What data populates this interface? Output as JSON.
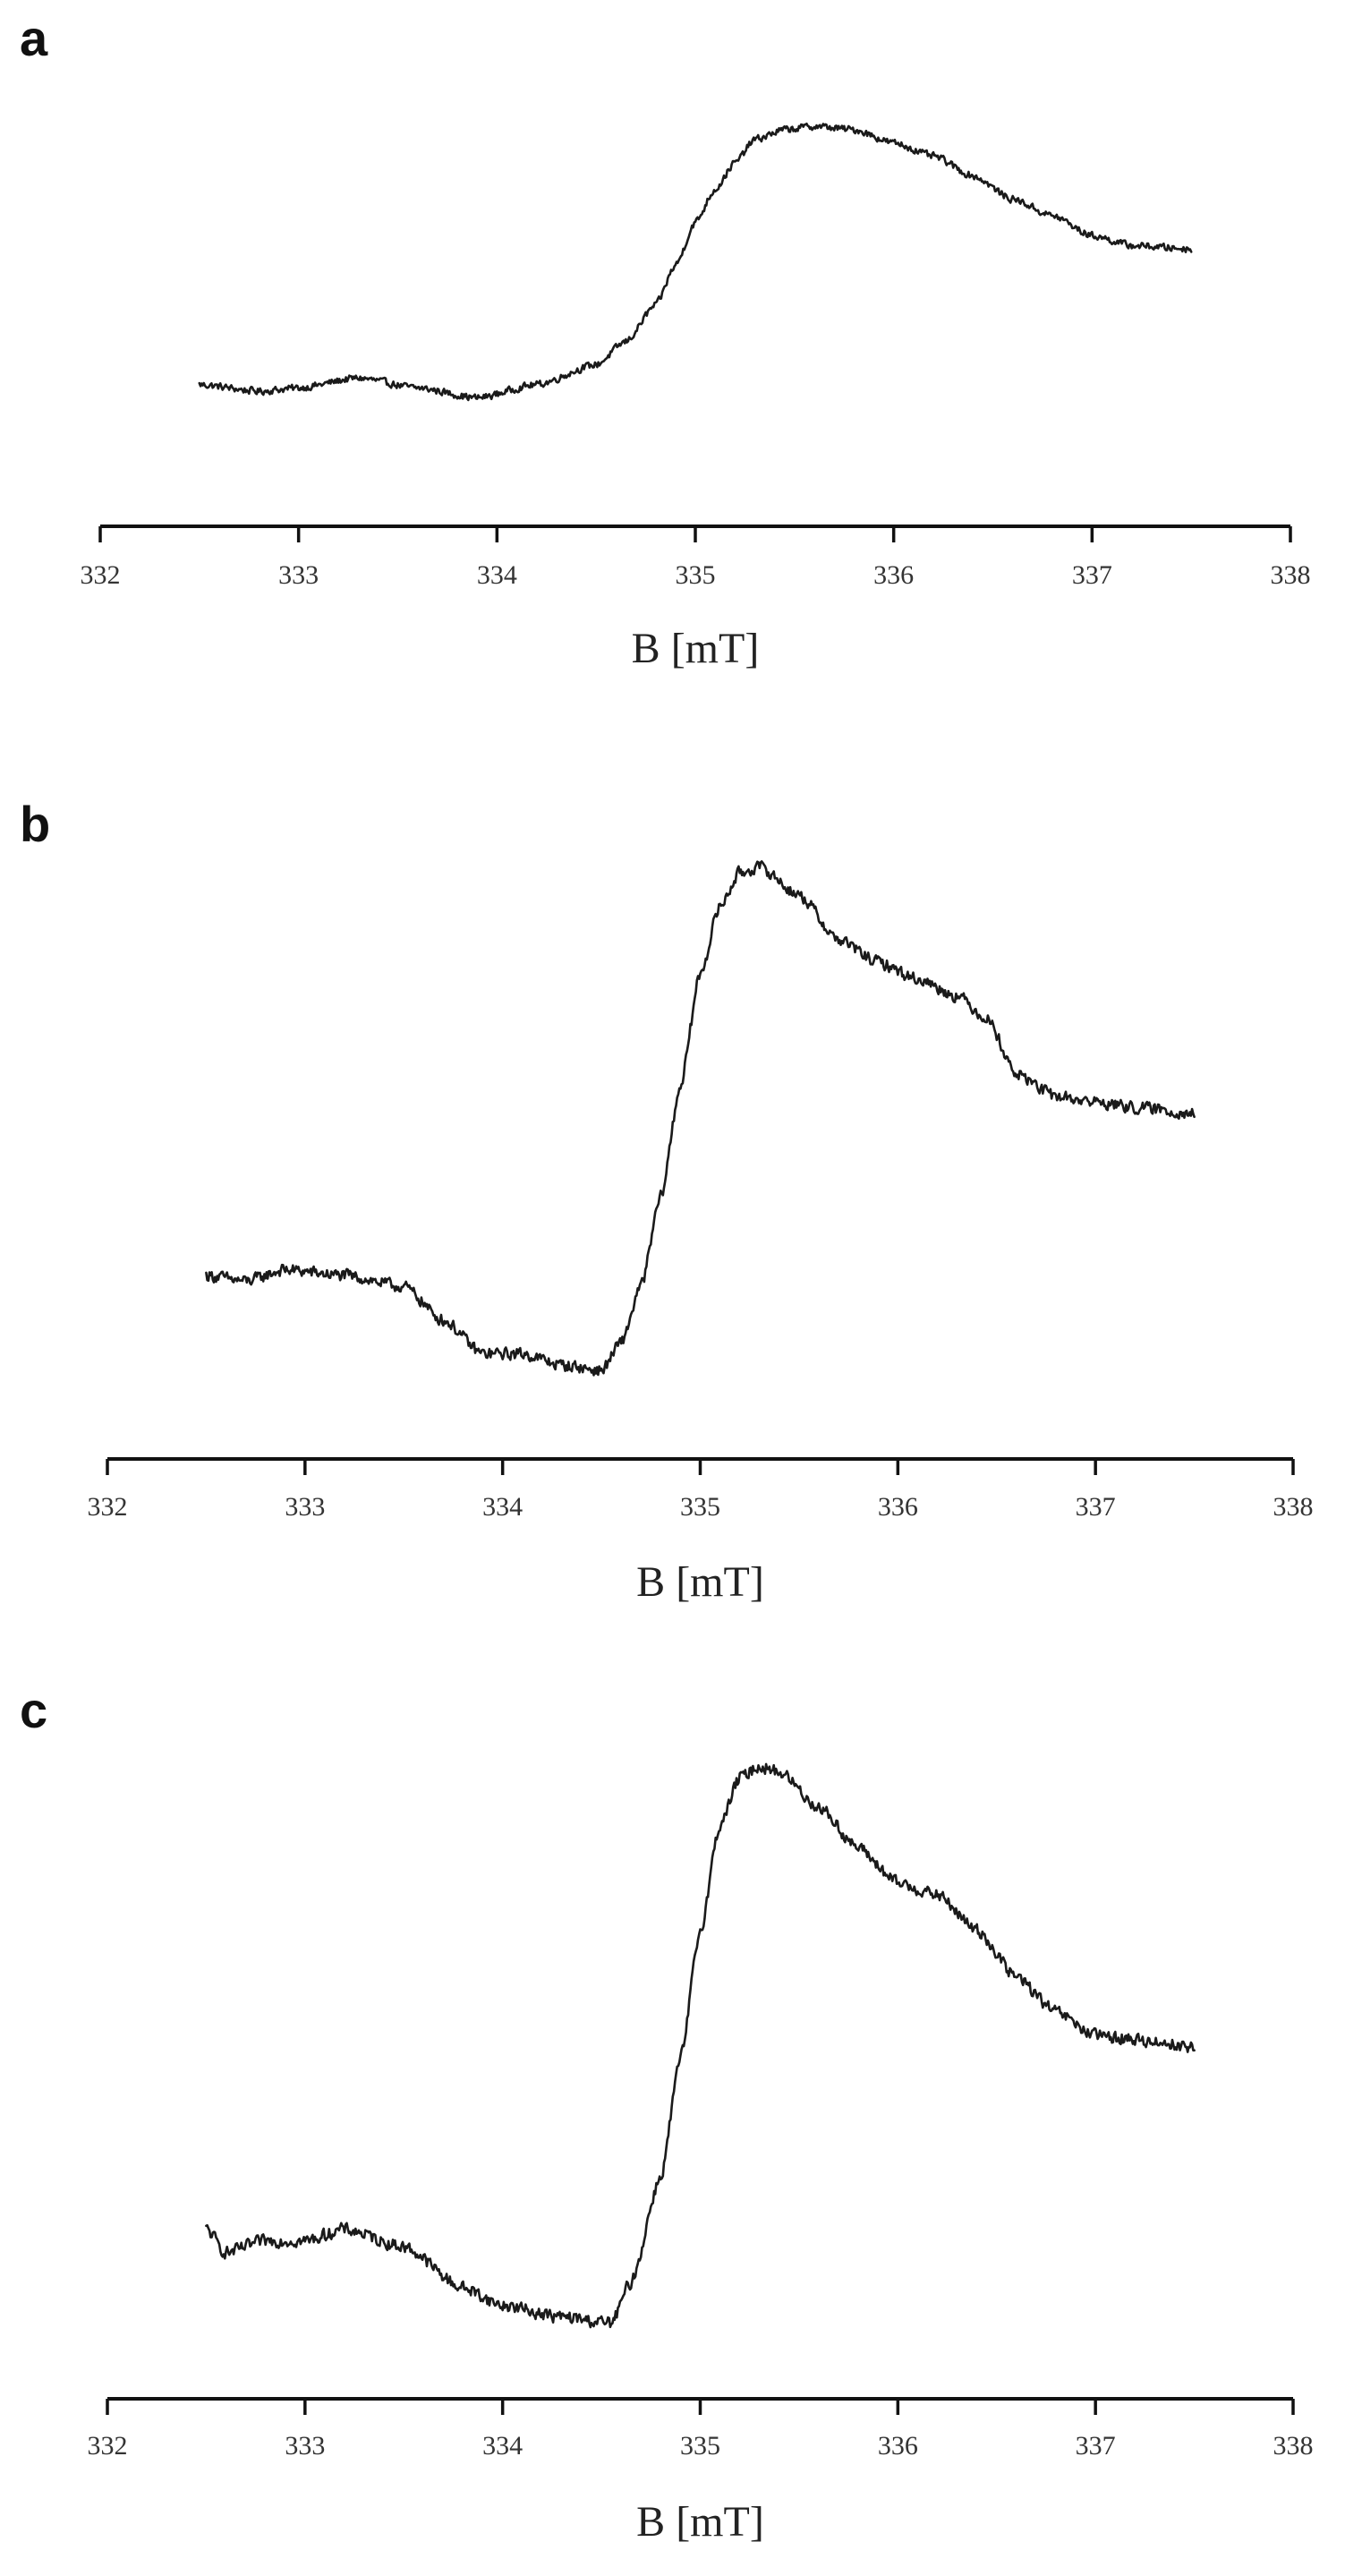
{
  "chart_data": [
    {
      "type": "line",
      "panel": "a",
      "xlabel": "B [mT]",
      "ylabel": "",
      "xlim": [
        332,
        338
      ],
      "xticks": [
        332,
        333,
        334,
        335,
        336,
        337,
        338
      ],
      "ylim": [
        0,
        1
      ],
      "grid": false,
      "y_axis_visible": false,
      "line_color": "#1a1a1a",
      "series": [
        {
          "x": [
            332.5,
            332.8,
            333.0,
            333.3,
            333.6,
            333.9,
            334.2,
            334.5,
            334.65,
            334.8,
            334.9,
            335.0,
            335.1,
            335.2,
            335.3,
            335.45,
            335.6,
            335.8,
            336.0,
            336.2,
            336.4,
            336.6,
            336.8,
            337.0,
            337.2,
            337.5
          ],
          "y": [
            0.19,
            0.17,
            0.18,
            0.21,
            0.18,
            0.15,
            0.19,
            0.25,
            0.32,
            0.43,
            0.55,
            0.68,
            0.78,
            0.86,
            0.93,
            0.96,
            0.97,
            0.96,
            0.92,
            0.88,
            0.82,
            0.75,
            0.7,
            0.64,
            0.61,
            0.6
          ]
        }
      ]
    },
    {
      "type": "line",
      "panel": "b",
      "xlabel": "B [mT]",
      "ylabel": "",
      "xlim": [
        332,
        338
      ],
      "xticks": [
        332,
        333,
        334,
        335,
        336,
        337,
        338
      ],
      "ylim": [
        0,
        1
      ],
      "grid": false,
      "y_axis_visible": false,
      "line_color": "#1a1a1a",
      "series": [
        {
          "x": [
            332.5,
            332.7,
            332.9,
            333.2,
            333.5,
            333.7,
            333.9,
            334.1,
            334.3,
            334.5,
            334.6,
            334.7,
            334.8,
            334.9,
            335.0,
            335.1,
            335.2,
            335.3,
            335.5,
            335.7,
            335.9,
            336.1,
            336.3,
            336.45,
            336.6,
            336.8,
            337.0,
            337.2,
            337.5
          ],
          "y": [
            0.24,
            0.23,
            0.25,
            0.24,
            0.22,
            0.16,
            0.1,
            0.1,
            0.08,
            0.07,
            0.12,
            0.22,
            0.38,
            0.58,
            0.78,
            0.9,
            0.96,
            0.97,
            0.92,
            0.84,
            0.8,
            0.77,
            0.74,
            0.7,
            0.6,
            0.56,
            0.55,
            0.54,
            0.53
          ]
        }
      ]
    },
    {
      "type": "line",
      "panel": "c",
      "xlabel": "B [mT]",
      "ylabel": "",
      "xlim": [
        332,
        338
      ],
      "xticks": [
        332,
        333,
        334,
        335,
        336,
        337,
        338
      ],
      "ylim": [
        0,
        1
      ],
      "grid": false,
      "y_axis_visible": false,
      "line_color": "#1a1a1a",
      "series": [
        {
          "x": [
            332.5,
            332.6,
            332.8,
            333.0,
            333.2,
            333.5,
            333.8,
            334.0,
            334.3,
            334.55,
            334.65,
            334.8,
            334.9,
            335.0,
            335.1,
            335.2,
            335.3,
            335.4,
            335.6,
            335.8,
            336.0,
            336.2,
            336.4,
            336.6,
            336.8,
            337.0,
            337.3,
            337.5
          ],
          "y": [
            0.19,
            0.15,
            0.17,
            0.17,
            0.19,
            0.16,
            0.09,
            0.06,
            0.04,
            0.03,
            0.1,
            0.28,
            0.48,
            0.7,
            0.88,
            0.96,
            0.98,
            0.97,
            0.91,
            0.84,
            0.78,
            0.76,
            0.7,
            0.62,
            0.56,
            0.52,
            0.51,
            0.5
          ]
        }
      ]
    }
  ]
}
